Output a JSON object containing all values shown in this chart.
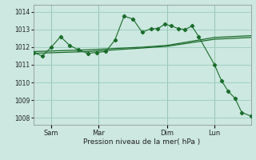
{
  "bg_color": "#cce8e0",
  "grid_color": "#99ccbb",
  "line_color": "#1a6b2a",
  "xlabel": "Pression niveau de la mer( hPa )",
  "yticks": [
    1008,
    1009,
    1010,
    1011,
    1012,
    1013,
    1014
  ],
  "ylim": [
    1007.6,
    1014.4
  ],
  "xlim": [
    0,
    1.0
  ],
  "day_labels": [
    "Sam",
    "Mar",
    "Dim",
    "Lun"
  ],
  "day_positions": [
    0.083,
    0.3,
    0.615,
    0.833
  ],
  "series1_x": [
    0.0,
    0.042,
    0.083,
    0.125,
    0.167,
    0.208,
    0.25,
    0.292,
    0.333,
    0.375,
    0.417,
    0.458,
    0.5,
    0.542,
    0.573,
    0.604,
    0.635,
    0.667,
    0.698,
    0.729,
    0.76,
    0.833,
    0.865,
    0.896,
    0.927,
    0.958,
    1.0
  ],
  "series1_y": [
    1011.7,
    1011.5,
    1012.0,
    1012.6,
    1012.1,
    1011.85,
    1011.65,
    1011.7,
    1011.75,
    1012.4,
    1013.75,
    1013.6,
    1012.85,
    1013.05,
    1013.05,
    1013.3,
    1013.2,
    1013.05,
    1013.0,
    1013.2,
    1012.6,
    1011.0,
    1010.1,
    1009.5,
    1009.1,
    1008.3,
    1008.1
  ],
  "series2_x": [
    0.0,
    0.25,
    0.5,
    0.615,
    0.833,
    1.0
  ],
  "series2_y": [
    1011.75,
    1011.85,
    1012.0,
    1012.1,
    1012.55,
    1012.65
  ],
  "series3_x": [
    0.0,
    0.25,
    0.5,
    0.615,
    0.833,
    1.0
  ],
  "series3_y": [
    1011.65,
    1011.75,
    1011.95,
    1012.05,
    1012.45,
    1012.55
  ]
}
